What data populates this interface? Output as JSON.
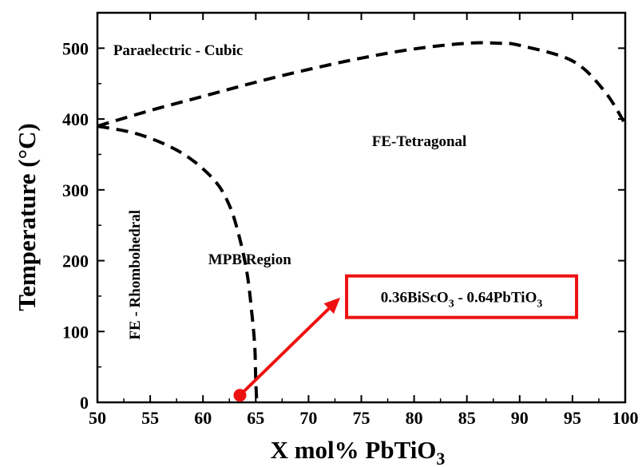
{
  "chart_data": {
    "type": "line",
    "title": "",
    "xlabel": "X mol%  PbTiO",
    "xlabel_sub": "3",
    "ylabel": "Temperature (°C)",
    "xlim": [
      50,
      100
    ],
    "ylim": [
      0,
      550
    ],
    "xticks": [
      50,
      55,
      60,
      65,
      70,
      75,
      80,
      85,
      90,
      95,
      100
    ],
    "yticks": [
      0,
      100,
      200,
      300,
      400,
      500
    ],
    "grid": false,
    "series": [
      {
        "style": "dashed",
        "x": [
          50,
          55,
          60,
          65,
          70,
          75,
          80,
          85,
          88,
          90,
          95,
          98,
          100
        ],
        "y": [
          390,
          412,
          432,
          452,
          470,
          486,
          499,
          507,
          507,
          504,
          482,
          440,
          393
        ]
      },
      {
        "style": "dashed",
        "x": [
          50,
          54,
          58,
          61,
          62.5,
          63.5,
          64.2,
          64.6,
          64.9,
          65.0,
          65.1
        ],
        "y": [
          390,
          378,
          352,
          315,
          278,
          230,
          180,
          130,
          80,
          30,
          0
        ]
      }
    ],
    "region_labels": [
      {
        "text": "Paraelectric - Cubic",
        "x": 51.5,
        "y": 490
      },
      {
        "text": "FE-Tetragonal",
        "x": 76,
        "y": 362
      },
      {
        "text": "MPB Region",
        "x": 60.5,
        "y": 195
      },
      {
        "text": "FE - Rhombohedral",
        "x": 54,
        "y": 180,
        "rotated": true
      }
    ],
    "annotation": {
      "text_main": "0.36BiScO",
      "text_sub1": "3",
      "text_mid": " - 0.64PbTiO",
      "text_sub2": "3",
      "point_x": 63.5,
      "point_y": 10,
      "arrow_to_x": 73,
      "arrow_to_y": 148,
      "color": "#ee1111"
    }
  }
}
